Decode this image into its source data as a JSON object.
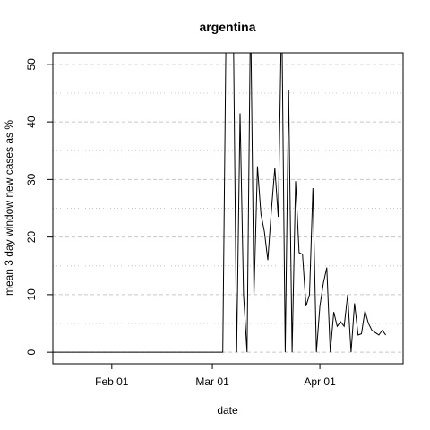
{
  "chart_data": {
    "type": "line",
    "title": "argentina",
    "xlabel": "date",
    "ylabel": "mean  3  day window new cases as %",
    "ylim": [
      -2,
      52
    ],
    "y_ticks": [
      0,
      10,
      20,
      30,
      40,
      50
    ],
    "x_axis": {
      "type": "date",
      "range": [
        "2020-01-15",
        "2020-04-25"
      ],
      "ticks": [
        {
          "date": "2020-02-01",
          "label": "Feb 01"
        },
        {
          "date": "2020-03-01",
          "label": "Mar 01"
        },
        {
          "date": "2020-04-01",
          "label": "Apr 01"
        }
      ]
    },
    "grid": {
      "horizontal": "dashed",
      "minor": "dotted",
      "vertical": false
    },
    "series": [
      {
        "color": "#000000",
        "x": [
          "2020-01-15",
          "2020-03-04",
          "2020-03-05",
          "2020-03-07",
          "2020-03-08",
          "2020-03-09",
          "2020-03-10",
          "2020-03-11",
          "2020-03-12",
          "2020-03-13",
          "2020-03-14",
          "2020-03-15",
          "2020-03-16",
          "2020-03-17",
          "2020-03-18",
          "2020-03-19",
          "2020-03-20",
          "2020-03-21",
          "2020-03-22",
          "2020-03-23",
          "2020-03-24",
          "2020-03-25",
          "2020-03-26",
          "2020-03-27",
          "2020-03-28",
          "2020-03-29",
          "2020-03-30",
          "2020-03-31",
          "2020-04-01",
          "2020-04-02",
          "2020-04-03",
          "2020-04-04",
          "2020-04-05",
          "2020-04-06",
          "2020-04-07",
          "2020-04-08",
          "2020-04-09",
          "2020-04-10",
          "2020-04-11",
          "2020-04-12",
          "2020-04-13",
          "2020-04-14",
          "2020-04-15",
          "2020-04-16",
          "2020-04-17",
          "2020-04-18",
          "2020-04-19",
          "2020-04-20"
        ],
        "y": [
          0,
          0,
          60,
          60,
          0,
          41.5,
          10,
          0,
          60,
          9.7,
          32.3,
          24,
          21,
          16,
          24.5,
          32,
          23.5,
          60,
          0,
          45.5,
          0,
          29.7,
          17.3,
          17,
          8,
          10,
          28.5,
          0,
          8,
          12,
          14.7,
          0,
          7,
          4.5,
          5.3,
          4.5,
          10,
          0,
          8.5,
          3,
          3.2,
          7.2,
          5,
          3.8,
          3.4,
          3,
          3.8,
          3
        ]
      }
    ]
  }
}
